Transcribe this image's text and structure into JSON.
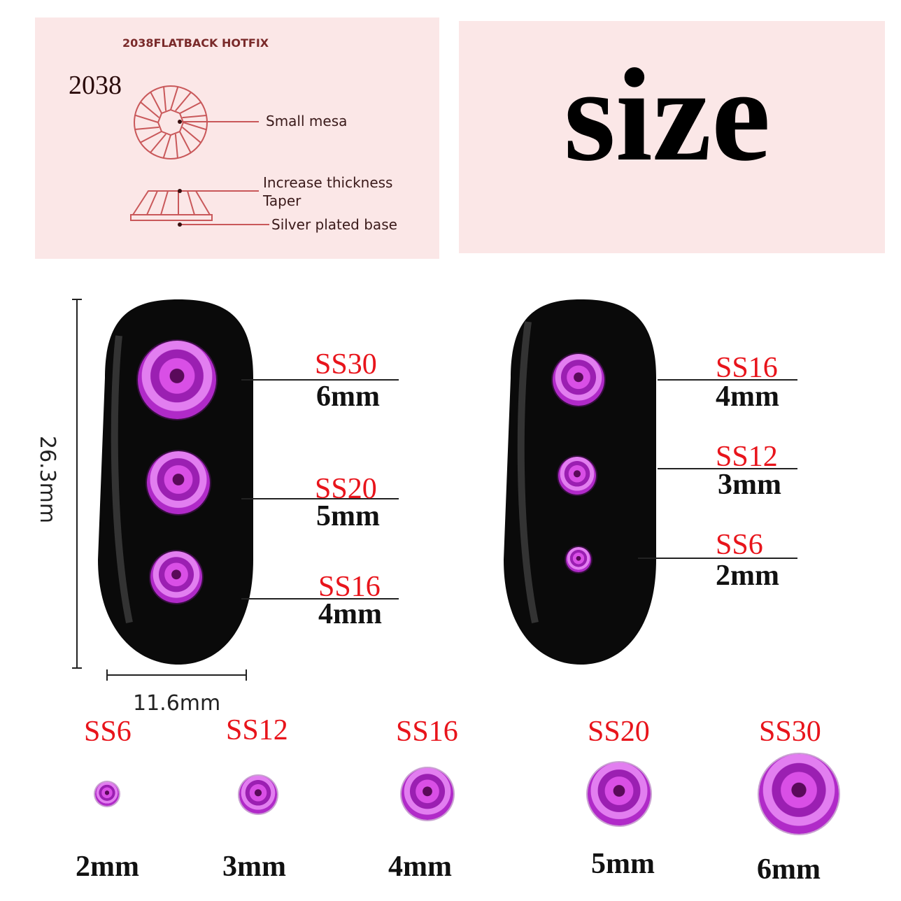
{
  "diagram": {
    "header": "2038FLATBACK HOTFIX",
    "model": "2038",
    "labels": [
      "Small mesa",
      "Increase thickness",
      "Taper",
      "Silver plated base"
    ]
  },
  "title": "size",
  "dimensions": {
    "height": "26.3mm",
    "width": "11.6mm"
  },
  "left_nail": [
    {
      "ss": "SS30",
      "mm": "6mm"
    },
    {
      "ss": "SS20",
      "mm": "5mm"
    },
    {
      "ss": "SS16",
      "mm": "4mm"
    }
  ],
  "right_nail": [
    {
      "ss": "SS16",
      "mm": "4mm"
    },
    {
      "ss": "SS12",
      "mm": "3mm"
    },
    {
      "ss": "SS6",
      "mm": "2mm"
    }
  ],
  "sizes": [
    {
      "ss": "SS6",
      "mm": "2mm"
    },
    {
      "ss": "SS12",
      "mm": "3mm"
    },
    {
      "ss": "SS16",
      "mm": "4mm"
    },
    {
      "ss": "SS20",
      "mm": "5mm"
    },
    {
      "ss": "SS30",
      "mm": "6mm"
    }
  ],
  "colors": {
    "label_red": "#e8141b",
    "gem": "#b02ac8",
    "panel": "#fbe7e7",
    "diagram_line": "#c9585a"
  }
}
